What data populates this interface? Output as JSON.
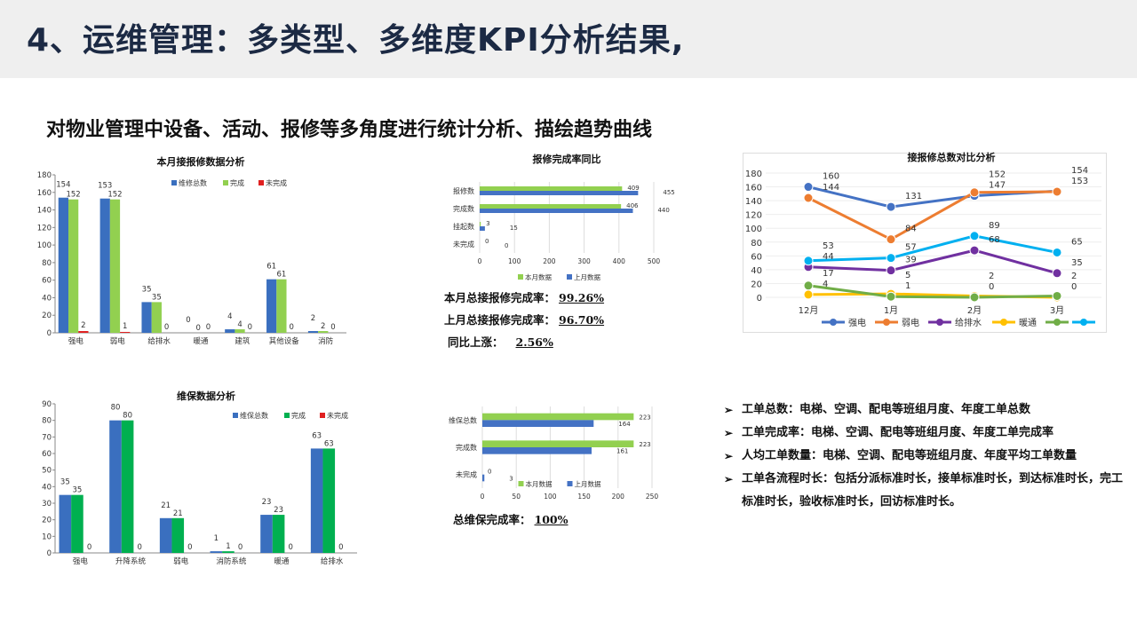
{
  "title": "4、运维管理：多类型、多维度KPI分析结果,",
  "subtitle": "对物业管理中设备、活动、报修等多角度进行统计分析、描绘趋势曲线",
  "stats1": [
    {
      "label": "本月总接报修完成率：",
      "value": "99.26%"
    },
    {
      "label": "上月总接报修完成率：",
      "value": "96.70%"
    },
    {
      "label": "同比上涨：",
      "value": "2.56%"
    }
  ],
  "stats2": {
    "label": "总维保完成率：",
    "value": "100%"
  },
  "bullets": [
    "工单总数：电梯、空调、配电等班组月度、年度工单总数",
    "工单完成率：电梯、空调、配电等班组月度、年度工单完成率",
    "人均工单数量：电梯、空调、配电等班组月度、年度平均工单数量",
    "工单各流程时长：包括分派标准时长，接单标准时长，到达标准时长，完工标准时长，验收标准时长，回访标准时长。"
  ],
  "chart_data": [
    {
      "type": "bar",
      "title": "本月接报修数据分析",
      "categories": [
        "强电",
        "弱电",
        "给排水",
        "暖通",
        "建筑",
        "其他设备",
        "消防"
      ],
      "ylim": [
        0,
        180
      ],
      "ystep": 20,
      "series": [
        {
          "name": "维修总数",
          "color": "#3a6fbf",
          "values": [
            154,
            153,
            35,
            0,
            4,
            61,
            2
          ]
        },
        {
          "name": "完成",
          "color": "#92d050",
          "values": [
            152,
            152,
            35,
            0,
            4,
            61,
            2
          ]
        },
        {
          "name": "未完成",
          "color": "#e02020",
          "values": [
            2,
            1,
            0,
            0,
            0,
            0,
            0
          ]
        }
      ]
    },
    {
      "type": "hbar",
      "title": "报修完成率同比",
      "categories": [
        "报修数",
        "完成数",
        "挂起数",
        "未完成"
      ],
      "xlim": [
        0,
        500
      ],
      "xstep": 100,
      "series": [
        {
          "name": "本月数据",
          "color": "#92d050",
          "values": [
            409,
            406,
            3,
            0
          ]
        },
        {
          "name": "上月数据",
          "color": "#4472c4",
          "values": [
            455,
            440,
            15,
            0
          ]
        }
      ]
    },
    {
      "type": "line",
      "title": "接报修总数对比分析",
      "categories": [
        "12月",
        "1月",
        "2月",
        "3月"
      ],
      "ylim": [
        0,
        180
      ],
      "ystep": 20,
      "series": [
        {
          "name": "强电",
          "color": "#4472c4",
          "values": [
            160,
            131,
            147,
            154
          ]
        },
        {
          "name": "弱电",
          "color": "#ed7d31",
          "values": [
            144,
            84,
            152,
            153
          ]
        },
        {
          "name": "给排水",
          "color": "#7030a0",
          "values": [
            44,
            39,
            68,
            35
          ]
        },
        {
          "name": "暖通",
          "color": "#ffc000",
          "values": [
            4,
            5,
            2,
            0
          ]
        },
        {
          "name": "",
          "color": "#70ad47",
          "values": [
            17,
            1,
            0,
            2
          ]
        },
        {
          "name": "",
          "color": "#00b0f0",
          "values": [
            53,
            57,
            89,
            65
          ]
        }
      ]
    },
    {
      "type": "bar",
      "title": "维保数据分析",
      "categories": [
        "强电",
        "升降系统",
        "弱电",
        "消防系统",
        "暖通",
        "给排水"
      ],
      "ylim": [
        0,
        90
      ],
      "ystep": 10,
      "series": [
        {
          "name": "维保总数",
          "color": "#3a6fbf",
          "values": [
            35,
            80,
            21,
            1,
            23,
            63
          ]
        },
        {
          "name": "完成",
          "color": "#00b050",
          "values": [
            35,
            80,
            21,
            1,
            23,
            63
          ]
        },
        {
          "name": "未完成",
          "color": "#e02020",
          "values": [
            0,
            0,
            0,
            0,
            0,
            0
          ]
        }
      ]
    },
    {
      "type": "hbar",
      "title": "",
      "categories": [
        "维保总数",
        "完成数",
        "未完成"
      ],
      "xlim": [
        0,
        250
      ],
      "xstep": 50,
      "series": [
        {
          "name": "本月数据",
          "color": "#92d050",
          "values": [
            223,
            223,
            0
          ]
        },
        {
          "name": "上月数据",
          "color": "#4472c4",
          "values": [
            164,
            161,
            3
          ]
        }
      ]
    }
  ]
}
